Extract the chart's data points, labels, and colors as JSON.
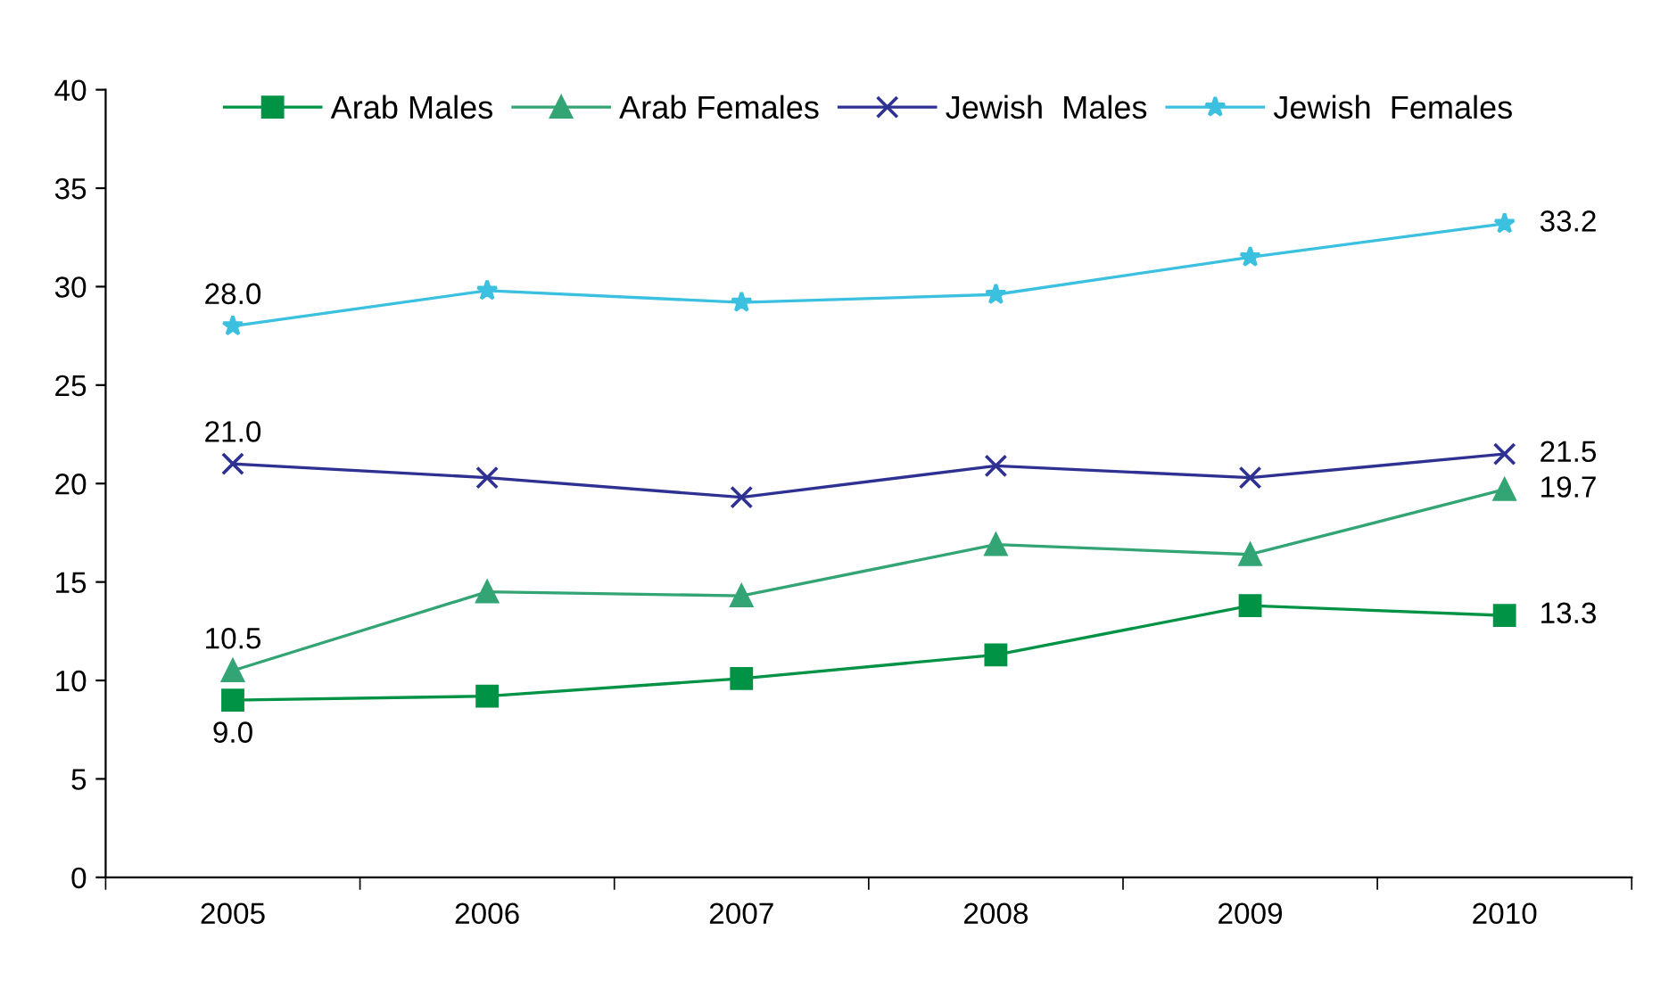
{
  "chart_data": {
    "type": "line",
    "categories": [
      "2005",
      "2006",
      "2007",
      "2008",
      "2009",
      "2010"
    ],
    "ylim": [
      0,
      40
    ],
    "yticks": [
      0,
      5,
      10,
      15,
      20,
      25,
      30,
      35,
      40
    ],
    "grid": false,
    "legend": "top",
    "series": [
      {
        "name": "Arab Males",
        "color": "#009245",
        "marker": "square",
        "values": [
          9.0,
          9.2,
          10.1,
          11.3,
          13.8,
          13.3
        ],
        "value_labels": [
          "9.0",
          null,
          null,
          null,
          null,
          "13.3"
        ]
      },
      {
        "name": "Arab Females",
        "color": "#33a474",
        "marker": "triangle",
        "values": [
          10.5,
          14.5,
          14.3,
          16.9,
          16.4,
          19.7
        ],
        "value_labels": [
          "10.5",
          null,
          null,
          null,
          null,
          "19.7"
        ]
      },
      {
        "name": "Jewish  Males",
        "color": "#2e3192",
        "marker": "cross",
        "values": [
          21.0,
          20.3,
          19.3,
          20.9,
          20.3,
          21.5
        ],
        "value_labels": [
          "21.0",
          null,
          null,
          null,
          null,
          "21.5"
        ]
      },
      {
        "name": "Jewish  Females",
        "color": "#3cc0e0",
        "marker": "star",
        "values": [
          28.0,
          29.8,
          29.2,
          29.6,
          31.5,
          33.2
        ],
        "value_labels": [
          "28.0",
          null,
          null,
          null,
          null,
          "33.2"
        ]
      }
    ]
  }
}
